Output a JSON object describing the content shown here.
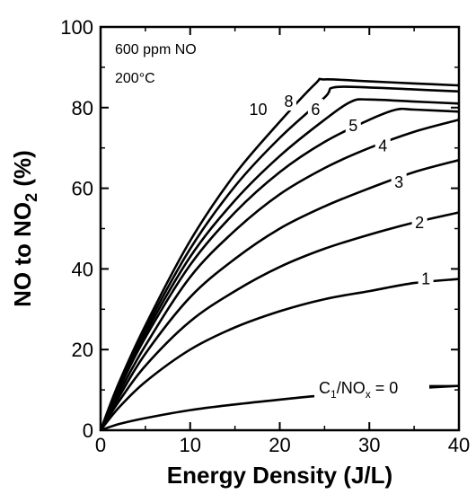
{
  "chart_data": {
    "type": "line",
    "xlabel": "Energy Density (J/L)",
    "ylabel": "NO to NO",
    "ylabel_subscript": "2",
    "ylabel_suffix": " (%)",
    "xlim": [
      0,
      40
    ],
    "ylim": [
      0,
      100
    ],
    "x_ticks": [
      "0",
      "10",
      "20",
      "30",
      "40"
    ],
    "y_ticks": [
      "0",
      "20",
      "40",
      "60",
      "80",
      "100"
    ],
    "annotations": [
      "600 ppm NO",
      "200°C"
    ],
    "legend_title": "C",
    "legend_title_sub": "1",
    "legend_title_mid": "/NO",
    "legend_title_sub2": "x",
    "legend_title_end": " = 0",
    "grid": false,
    "series": [
      {
        "name": "0",
        "x": [
          0,
          2,
          5,
          10,
          15,
          20,
          25,
          30,
          35,
          40
        ],
        "y": [
          0,
          1.5,
          3,
          5,
          6.4,
          7.6,
          8.7,
          9.6,
          10.4,
          11
        ]
      },
      {
        "name": "1",
        "x": [
          0,
          2,
          5,
          10,
          15,
          20,
          25,
          30,
          35,
          40
        ],
        "y": [
          0,
          5.5,
          12,
          20,
          25.5,
          29.5,
          32.5,
          34.5,
          36.5,
          37.5
        ]
      },
      {
        "name": "2",
        "x": [
          0,
          2,
          5,
          10,
          15,
          20,
          25,
          30,
          35,
          40
        ],
        "y": [
          0,
          7,
          16,
          27,
          34.5,
          40.5,
          45,
          48.5,
          51.5,
          54
        ]
      },
      {
        "name": "3",
        "x": [
          0,
          2,
          5,
          10,
          15,
          20,
          25,
          30,
          35,
          40
        ],
        "y": [
          0,
          8,
          19,
          33,
          42.5,
          50,
          55.5,
          60,
          64,
          67
        ]
      },
      {
        "name": "4",
        "x": [
          0,
          2,
          5,
          10,
          15,
          20,
          25,
          30,
          35,
          40
        ],
        "y": [
          0,
          9,
          21,
          38,
          49.5,
          58.5,
          65,
          70,
          74,
          77
        ]
      },
      {
        "name": "5",
        "x": [
          0,
          2,
          5,
          10,
          15,
          20,
          25,
          30,
          33,
          35,
          40
        ],
        "y": [
          0,
          10,
          23,
          41,
          54,
          64,
          71.5,
          77,
          79.5,
          79.5,
          79
        ]
      },
      {
        "name": "6",
        "x": [
          0,
          2,
          5,
          10,
          15,
          20,
          25,
          28,
          30,
          35,
          40
        ],
        "y": [
          0,
          10.5,
          24,
          43,
          57,
          68,
          77,
          81.5,
          82,
          81.5,
          81
        ]
      },
      {
        "name": "8",
        "x": [
          0,
          2,
          5,
          10,
          15,
          20,
          25,
          26,
          30,
          35,
          40
        ],
        "y": [
          0,
          11,
          25,
          45,
          60.5,
          72.5,
          82.5,
          85,
          85,
          84.5,
          84
        ]
      },
      {
        "name": "10",
        "x": [
          0,
          2,
          5,
          10,
          15,
          20,
          24,
          25,
          30,
          35,
          40
        ],
        "y": [
          0,
          11.5,
          26,
          47,
          63.5,
          76.5,
          86,
          87,
          86.5,
          86,
          85.5
        ]
      }
    ],
    "curve_labels": [
      {
        "text": "1",
        "x": 36.3,
        "y": 37.5
      },
      {
        "text": "2",
        "x": 35.6,
        "y": 51.5
      },
      {
        "text": "3",
        "x": 33.3,
        "y": 61.5
      },
      {
        "text": "4",
        "x": 31.5,
        "y": 70.5
      },
      {
        "text": "5",
        "x": 28.2,
        "y": 75.5
      },
      {
        "text": "6",
        "x": 24.0,
        "y": 79.5
      },
      {
        "text": "8",
        "x": 21.0,
        "y": 81.5
      },
      {
        "text": "10",
        "x": 17.6,
        "y": 79.5
      }
    ]
  }
}
